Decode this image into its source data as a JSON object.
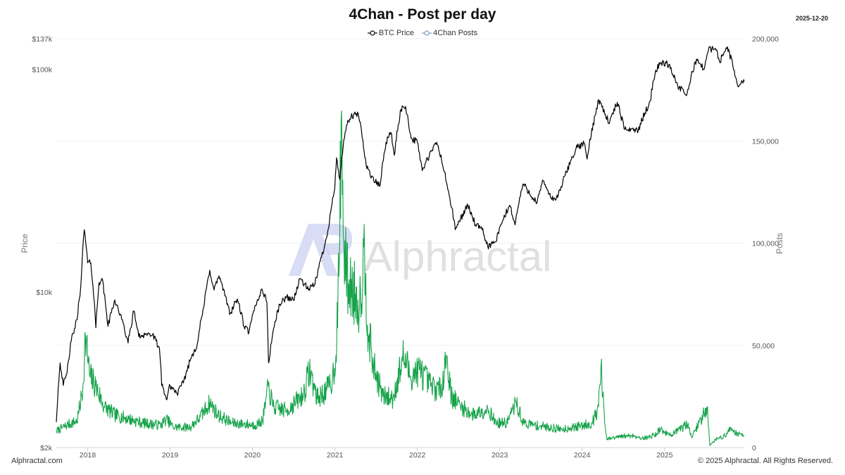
{
  "header": {
    "date": "2025-12-20"
  },
  "footer": {
    "left": "Alphractal.com",
    "right": "© 2025 Alphractal. All Rights Reserved."
  },
  "watermark": {
    "text": "Alphractal"
  },
  "chart_data": {
    "type": "line",
    "title": "4Chan - Post per day",
    "xlabel": "",
    "grid": true,
    "legend_position": "top-center",
    "x_ticks": [
      "2018",
      "2019",
      "2020",
      "2021",
      "2022",
      "2023",
      "2024",
      "2025"
    ],
    "x_range": [
      "2017-08-15",
      "2025-12-20"
    ],
    "y_left": {
      "label": "Price",
      "scale": "log",
      "range": [
        2000,
        137000
      ],
      "ticks": [
        {
          "value": 2000,
          "label": "$2k"
        },
        {
          "value": 10000,
          "label": "$10k"
        },
        {
          "value": 100000,
          "label": "$100k"
        },
        {
          "value": 137000,
          "label": "$137k"
        }
      ]
    },
    "y_right": {
      "label": "Posts",
      "scale": "linear",
      "range": [
        0,
        200000
      ],
      "ticks": [
        {
          "value": 0,
          "label": "0"
        },
        {
          "value": 50000,
          "label": "50,000"
        },
        {
          "value": 100000,
          "label": "100,000"
        },
        {
          "value": 150000,
          "label": "150,000"
        },
        {
          "value": 200000,
          "label": "200,000"
        }
      ]
    },
    "series": [
      {
        "name": "BTC Price",
        "axis": "left",
        "color": "#000000",
        "points": [
          [
            "2017-08-15",
            2600
          ],
          [
            "2017-09-01",
            4800
          ],
          [
            "2017-09-15",
            3800
          ],
          [
            "2017-10-01",
            4300
          ],
          [
            "2017-10-20",
            6000
          ],
          [
            "2017-11-15",
            7500
          ],
          [
            "2017-12-01",
            10500
          ],
          [
            "2017-12-17",
            19000
          ],
          [
            "2018-01-01",
            13500
          ],
          [
            "2018-01-15",
            13500
          ],
          [
            "2018-02-06",
            6900
          ],
          [
            "2018-02-20",
            11000
          ],
          [
            "2018-03-05",
            11500
          ],
          [
            "2018-04-01",
            7000
          ],
          [
            "2018-05-01",
            9200
          ],
          [
            "2018-06-01",
            7500
          ],
          [
            "2018-06-29",
            5900
          ],
          [
            "2018-07-25",
            8200
          ],
          [
            "2018-08-15",
            6300
          ],
          [
            "2018-09-15",
            6500
          ],
          [
            "2018-10-15",
            6400
          ],
          [
            "2018-11-15",
            5600
          ],
          [
            "2018-11-25",
            3800
          ],
          [
            "2018-12-15",
            3300
          ],
          [
            "2019-01-01",
            3800
          ],
          [
            "2019-02-01",
            3500
          ],
          [
            "2019-03-01",
            3900
          ],
          [
            "2019-04-02",
            5000
          ],
          [
            "2019-05-01",
            5800
          ],
          [
            "2019-05-30",
            8500
          ],
          [
            "2019-06-26",
            12500
          ],
          [
            "2019-07-15",
            10200
          ],
          [
            "2019-08-06",
            11800
          ],
          [
            "2019-09-01",
            9600
          ],
          [
            "2019-09-25",
            8000
          ],
          [
            "2019-10-26",
            9300
          ],
          [
            "2019-11-25",
            7000
          ],
          [
            "2019-12-17",
            6600
          ],
          [
            "2020-01-15",
            8700
          ],
          [
            "2020-02-13",
            10300
          ],
          [
            "2020-03-05",
            9000
          ],
          [
            "2020-03-12",
            5000
          ],
          [
            "2020-03-13",
            4800
          ],
          [
            "2020-04-01",
            6600
          ],
          [
            "2020-05-01",
            8800
          ],
          [
            "2020-06-01",
            9500
          ],
          [
            "2020-07-01",
            9200
          ],
          [
            "2020-08-01",
            11500
          ],
          [
            "2020-09-05",
            10200
          ],
          [
            "2020-10-01",
            10700
          ],
          [
            "2020-10-21",
            12800
          ],
          [
            "2020-11-15",
            16000
          ],
          [
            "2020-12-01",
            19000
          ],
          [
            "2020-12-31",
            29000
          ],
          [
            "2021-01-08",
            40000
          ],
          [
            "2021-01-22",
            32000
          ],
          [
            "2021-02-21",
            56000
          ],
          [
            "2021-03-13",
            61000
          ],
          [
            "2021-04-14",
            63000
          ],
          [
            "2021-05-19",
            37000
          ],
          [
            "2021-06-22",
            31500
          ],
          [
            "2021-07-20",
            30000
          ],
          [
            "2021-08-15",
            47000
          ],
          [
            "2021-09-06",
            52000
          ],
          [
            "2021-09-21",
            41000
          ],
          [
            "2021-10-20",
            66000
          ],
          [
            "2021-11-10",
            68000
          ],
          [
            "2021-12-04",
            49000
          ],
          [
            "2022-01-01",
            47000
          ],
          [
            "2022-01-23",
            35000
          ],
          [
            "2022-03-28",
            47000
          ],
          [
            "2022-05-10",
            31000
          ],
          [
            "2022-06-18",
            19000
          ],
          [
            "2022-08-13",
            24500
          ],
          [
            "2022-09-15",
            20000
          ],
          [
            "2022-10-15",
            19000
          ],
          [
            "2022-11-09",
            16000
          ],
          [
            "2022-12-15",
            16800
          ],
          [
            "2023-01-15",
            21000
          ],
          [
            "2023-02-15",
            24500
          ],
          [
            "2023-03-10",
            20000
          ],
          [
            "2023-04-14",
            30500
          ],
          [
            "2023-06-15",
            25000
          ],
          [
            "2023-07-13",
            31500
          ],
          [
            "2023-08-20",
            26000
          ],
          [
            "2023-09-15",
            26500
          ],
          [
            "2023-10-24",
            34500
          ],
          [
            "2023-12-05",
            44000
          ],
          [
            "2024-01-10",
            46500
          ],
          [
            "2024-01-23",
            39500
          ],
          [
            "2024-02-28",
            62000
          ],
          [
            "2024-03-14",
            73000
          ],
          [
            "2024-05-01",
            57000
          ],
          [
            "2024-06-05",
            71000
          ],
          [
            "2024-07-05",
            54000
          ],
          [
            "2024-08-05",
            54000
          ],
          [
            "2024-09-06",
            53000
          ],
          [
            "2024-10-29",
            72000
          ],
          [
            "2024-11-22",
            99000
          ],
          [
            "2024-12-17",
            107000
          ],
          [
            "2025-01-20",
            105000
          ],
          [
            "2025-02-28",
            84000
          ],
          [
            "2025-04-08",
            76000
          ],
          [
            "2025-05-22",
            111000
          ],
          [
            "2025-06-22",
            100000
          ],
          [
            "2025-07-14",
            122000
          ],
          [
            "2025-08-14",
            124000
          ],
          [
            "2025-09-01",
            108000
          ],
          [
            "2025-10-06",
            126000
          ],
          [
            "2025-11-21",
            84000
          ],
          [
            "2025-12-20",
            88000
          ]
        ]
      },
      {
        "name": "4Chan Posts",
        "axis": "right",
        "color": "#16a34a",
        "points": [
          [
            "2017-08-15",
            8000
          ],
          [
            "2017-10-01",
            11000
          ],
          [
            "2017-11-15",
            13000
          ],
          [
            "2017-12-10",
            28000
          ],
          [
            "2017-12-22",
            55000
          ],
          [
            "2018-01-10",
            35000
          ],
          [
            "2018-02-06",
            30000
          ],
          [
            "2018-03-15",
            20000
          ],
          [
            "2018-05-01",
            16000
          ],
          [
            "2018-07-01",
            14000
          ],
          [
            "2018-09-01",
            12000
          ],
          [
            "2018-11-20",
            11000
          ],
          [
            "2018-12-15",
            14000
          ],
          [
            "2019-01-15",
            10000
          ],
          [
            "2019-04-01",
            10000
          ],
          [
            "2019-05-15",
            15000
          ],
          [
            "2019-06-26",
            22000
          ],
          [
            "2019-08-01",
            16000
          ],
          [
            "2019-10-01",
            12000
          ],
          [
            "2020-01-15",
            11000
          ],
          [
            "2020-02-15",
            13000
          ],
          [
            "2020-03-12",
            30000
          ],
          [
            "2020-04-01",
            20000
          ],
          [
            "2020-06-01",
            18000
          ],
          [
            "2020-08-15",
            26000
          ],
          [
            "2020-09-10",
            38000
          ],
          [
            "2020-10-15",
            24000
          ],
          [
            "2020-11-25",
            28000
          ],
          [
            "2020-12-20",
            33000
          ],
          [
            "2021-01-05",
            45000
          ],
          [
            "2021-01-20",
            90000
          ],
          [
            "2021-01-28",
            160000
          ],
          [
            "2021-02-10",
            95000
          ],
          [
            "2021-03-01",
            80000
          ],
          [
            "2021-04-01",
            75000
          ],
          [
            "2021-04-20",
            70000
          ],
          [
            "2021-05-12",
            97000
          ],
          [
            "2021-05-25",
            60000
          ],
          [
            "2021-06-20",
            40000
          ],
          [
            "2021-08-01",
            25000
          ],
          [
            "2021-09-15",
            24000
          ],
          [
            "2021-11-01",
            45000
          ],
          [
            "2021-12-01",
            35000
          ],
          [
            "2022-01-10",
            38000
          ],
          [
            "2022-03-01",
            30000
          ],
          [
            "2022-04-15",
            28000
          ],
          [
            "2022-05-10",
            45000
          ],
          [
            "2022-06-01",
            25000
          ],
          [
            "2022-07-15",
            20000
          ],
          [
            "2022-09-01",
            16000
          ],
          [
            "2022-11-10",
            19000
          ],
          [
            "2022-12-15",
            12000
          ],
          [
            "2023-02-01",
            12000
          ],
          [
            "2023-03-15",
            22000
          ],
          [
            "2023-04-15",
            12000
          ],
          [
            "2023-06-01",
            11000
          ],
          [
            "2023-08-01",
            10000
          ],
          [
            "2023-10-01",
            9000
          ],
          [
            "2023-12-01",
            10000
          ],
          [
            "2024-02-15",
            12000
          ],
          [
            "2024-03-14",
            20000
          ],
          [
            "2024-03-25",
            40000
          ],
          [
            "2024-04-10",
            12000
          ],
          [
            "2024-04-20",
            4000
          ],
          [
            "2024-06-01",
            5000
          ],
          [
            "2024-08-05",
            6000
          ],
          [
            "2024-10-01",
            4500
          ],
          [
            "2024-11-15",
            6000
          ],
          [
            "2024-12-15",
            9000
          ],
          [
            "2025-01-20",
            6000
          ],
          [
            "2025-03-01",
            8000
          ],
          [
            "2025-04-15",
            12000
          ],
          [
            "2025-05-01",
            5000
          ],
          [
            "2025-07-10",
            20000
          ],
          [
            "2025-07-20",
            1000
          ],
          [
            "2025-08-15",
            4000
          ],
          [
            "2025-10-01",
            6000
          ],
          [
            "2025-10-20",
            10000
          ],
          [
            "2025-11-15",
            7000
          ],
          [
            "2025-12-20",
            6000
          ]
        ]
      }
    ]
  }
}
